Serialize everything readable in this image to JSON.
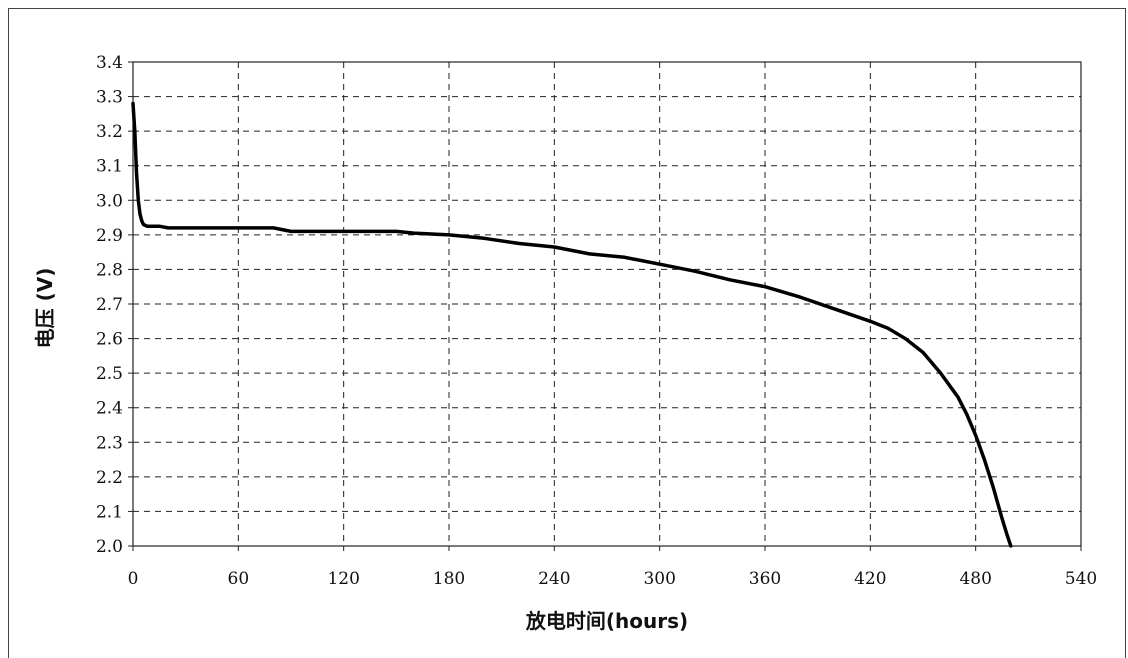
{
  "chart_data": {
    "type": "line",
    "title": "",
    "xlabel": "放电时间(hours)",
    "ylabel": "电压 (V)",
    "xlim": [
      0,
      540
    ],
    "ylim": [
      2.0,
      3.4
    ],
    "x_ticks": [
      "0",
      "60",
      "120",
      "180",
      "240",
      "300",
      "360",
      "420",
      "480",
      "540"
    ],
    "y_ticks": [
      "2.0",
      "2.1",
      "2.2",
      "2.3",
      "2.4",
      "2.5",
      "2.6",
      "2.7",
      "2.8",
      "2.9",
      "3.0",
      "3.1",
      "3.2",
      "3.3",
      "3.4"
    ],
    "grid": true,
    "grid_style": "dashed",
    "line_color": "#000000",
    "series": [
      {
        "x": [
          0,
          1,
          2,
          3,
          4,
          5,
          6,
          8,
          10,
          15,
          20,
          40,
          60,
          80,
          90,
          100,
          120,
          150,
          160,
          180,
          200,
          220,
          240,
          260,
          280,
          300,
          320,
          340,
          360,
          380,
          400,
          420,
          430,
          440,
          450,
          460,
          470,
          475,
          480,
          485,
          490,
          495,
          498,
          500
        ],
        "y": [
          3.28,
          3.2,
          3.08,
          3.0,
          2.96,
          2.94,
          2.93,
          2.925,
          2.925,
          2.925,
          2.92,
          2.92,
          2.92,
          2.92,
          2.91,
          2.91,
          2.91,
          2.91,
          2.905,
          2.9,
          2.89,
          2.875,
          2.865,
          2.845,
          2.835,
          2.815,
          2.795,
          2.77,
          2.75,
          2.72,
          2.685,
          2.65,
          2.63,
          2.6,
          2.56,
          2.5,
          2.43,
          2.38,
          2.32,
          2.25,
          2.17,
          2.08,
          2.03,
          2.0
        ]
      }
    ]
  }
}
